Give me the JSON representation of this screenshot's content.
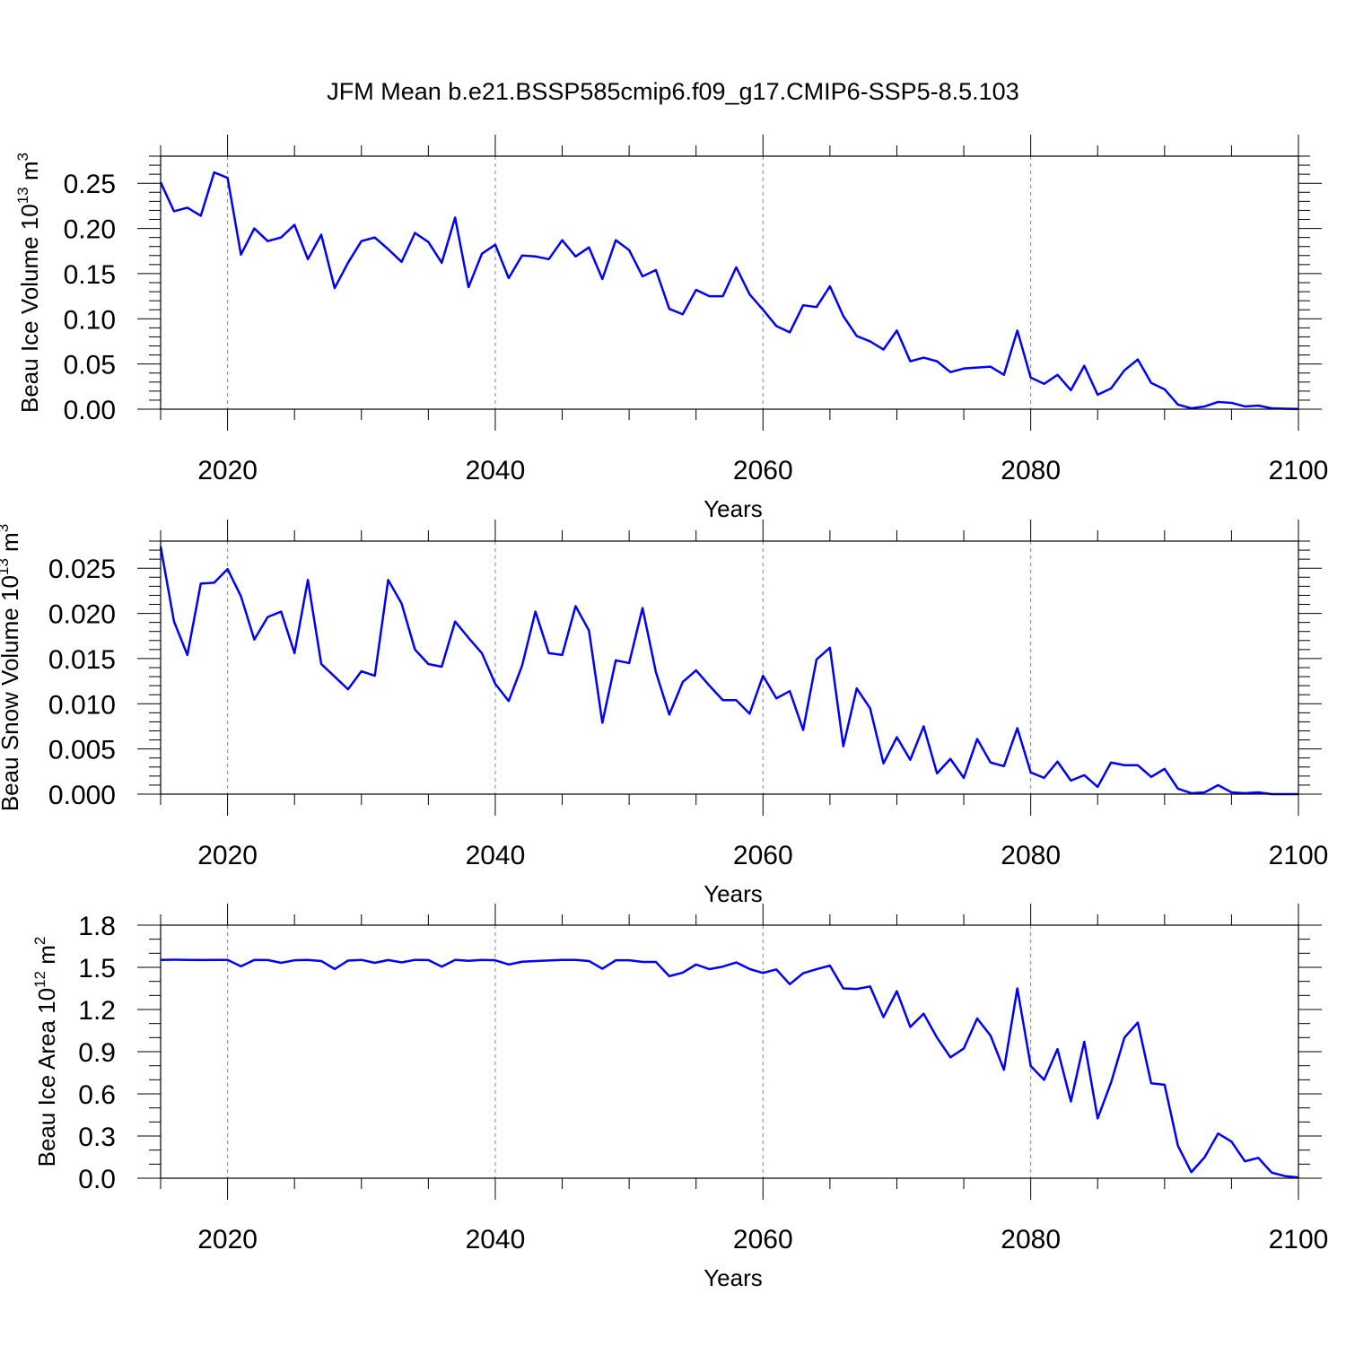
{
  "title": "JFM Mean b.e21.BSSP585cmip6.f09_g17.CMIP6-SSP5-8.5.103",
  "colors": {
    "series": "#0000ff",
    "axis": "#000000",
    "grid": "#888888"
  },
  "chart_data": [
    {
      "type": "line",
      "ylabel": "Beau Ice Volume 10",
      "ylabel_sup": "13",
      "ylabel_unit": " m",
      "ylabel_unit_sup": "3",
      "xlabel": "Years",
      "xlim": [
        2015,
        2100
      ],
      "ylim": [
        0,
        0.28
      ],
      "yticks": [
        0,
        0.05,
        0.1,
        0.15,
        0.2,
        0.25
      ],
      "ytick_labels": [
        "0.00",
        "0.05",
        "0.10",
        "0.15",
        "0.20",
        "0.25"
      ],
      "xticks": [
        2020,
        2040,
        2060,
        2080,
        2100
      ],
      "xtick_labels": [
        "2020",
        "2040",
        "2060",
        "2080",
        "2100"
      ],
      "grid": "vertical dashed at major x ticks",
      "start_year": 2015,
      "values": [
        0.251,
        0.219,
        0.223,
        0.214,
        0.262,
        0.256,
        0.171,
        0.2,
        0.186,
        0.19,
        0.204,
        0.166,
        0.193,
        0.134,
        0.162,
        0.186,
        0.19,
        0.177,
        0.163,
        0.195,
        0.185,
        0.162,
        0.212,
        0.135,
        0.172,
        0.182,
        0.145,
        0.17,
        0.169,
        0.166,
        0.187,
        0.169,
        0.179,
        0.144,
        0.187,
        0.176,
        0.147,
        0.154,
        0.111,
        0.105,
        0.132,
        0.125,
        0.125,
        0.157,
        0.127,
        0.11,
        0.092,
        0.085,
        0.115,
        0.113,
        0.136,
        0.103,
        0.081,
        0.075,
        0.066,
        0.087,
        0.053,
        0.057,
        0.053,
        0.041,
        0.045,
        0.046,
        0.047,
        0.038,
        0.087,
        0.035,
        0.028,
        0.038,
        0.021,
        0.048,
        0.016,
        0.023,
        0.043,
        0.055,
        0.029,
        0.022,
        0.005,
        0.001,
        0.003,
        0.008,
        0.007,
        0.003,
        0.004,
        0.001,
        0.0005,
        0.0002
      ]
    },
    {
      "type": "line",
      "ylabel": "Beau Snow Volume 10",
      "ylabel_sup": "13",
      "ylabel_unit": " m",
      "ylabel_unit_sup": "3",
      "xlabel": "Years",
      "xlim": [
        2015,
        2100
      ],
      "ylim": [
        0,
        0.028
      ],
      "yticks": [
        0,
        0.005,
        0.01,
        0.015,
        0.02,
        0.025
      ],
      "ytick_labels": [
        "0.000",
        "0.005",
        "0.010",
        "0.015",
        "0.020",
        "0.025"
      ],
      "xticks": [
        2020,
        2040,
        2060,
        2080,
        2100
      ],
      "xtick_labels": [
        "2020",
        "2040",
        "2060",
        "2080",
        "2100"
      ],
      "grid": "vertical dashed at major x ticks",
      "start_year": 2015,
      "values": [
        0.0274,
        0.0191,
        0.0154,
        0.0233,
        0.0234,
        0.0249,
        0.0219,
        0.0171,
        0.0196,
        0.0202,
        0.0156,
        0.0237,
        0.0144,
        0.013,
        0.0116,
        0.0136,
        0.0131,
        0.0237,
        0.0211,
        0.016,
        0.0144,
        0.0141,
        0.0191,
        0.0173,
        0.0156,
        0.0122,
        0.0103,
        0.0142,
        0.0202,
        0.0156,
        0.0154,
        0.0208,
        0.0181,
        0.0079,
        0.0148,
        0.0145,
        0.0206,
        0.0135,
        0.0088,
        0.0124,
        0.0137,
        0.012,
        0.0104,
        0.0104,
        0.0089,
        0.0131,
        0.0106,
        0.0114,
        0.0071,
        0.0149,
        0.0162,
        0.0053,
        0.0117,
        0.0095,
        0.0034,
        0.0063,
        0.0038,
        0.0075,
        0.0023,
        0.0039,
        0.0018,
        0.0061,
        0.0035,
        0.0031,
        0.0073,
        0.0024,
        0.0018,
        0.0036,
        0.0015,
        0.0021,
        0.0008,
        0.0035,
        0.0032,
        0.0032,
        0.0019,
        0.0028,
        0.0006,
        0.0001,
        0.0002,
        0.001,
        0.0002,
        0.0001,
        0.0002,
        0.0,
        0.0,
        0.0
      ]
    },
    {
      "type": "line",
      "ylabel": "Beau Ice Area 10",
      "ylabel_sup": "12",
      "ylabel_unit": " m",
      "ylabel_unit_sup": "2",
      "xlabel": "Years",
      "xlim": [
        2015,
        2100
      ],
      "ylim": [
        0,
        1.8
      ],
      "yticks": [
        0,
        0.3,
        0.6,
        0.9,
        1.2,
        1.5,
        1.8
      ],
      "ytick_labels": [
        "0.0",
        "0.3",
        "0.6",
        "0.9",
        "1.2",
        "1.5",
        "1.8"
      ],
      "xticks": [
        2020,
        2040,
        2060,
        2080,
        2100
      ],
      "xtick_labels": [
        "2020",
        "2040",
        "2060",
        "2080",
        "2100"
      ],
      "grid": "vertical dashed at major x ticks",
      "start_year": 2015,
      "values": [
        1.553,
        1.554,
        1.553,
        1.552,
        1.553,
        1.553,
        1.507,
        1.553,
        1.552,
        1.532,
        1.55,
        1.553,
        1.545,
        1.488,
        1.548,
        1.553,
        1.532,
        1.552,
        1.535,
        1.553,
        1.552,
        1.505,
        1.553,
        1.546,
        1.553,
        1.55,
        1.52,
        1.54,
        1.545,
        1.549,
        1.553,
        1.553,
        1.545,
        1.49,
        1.55,
        1.55,
        1.538,
        1.538,
        1.437,
        1.462,
        1.52,
        1.487,
        1.505,
        1.535,
        1.488,
        1.46,
        1.485,
        1.38,
        1.458,
        1.487,
        1.512,
        1.35,
        1.346,
        1.364,
        1.146,
        1.33,
        1.076,
        1.17,
        1.0,
        0.86,
        0.923,
        1.136,
        1.014,
        0.771,
        1.35,
        0.798,
        0.7,
        0.918,
        0.546,
        0.971,
        0.425,
        0.68,
        1.0,
        1.107,
        0.675,
        0.665,
        0.23,
        0.043,
        0.15,
        0.318,
        0.26,
        0.12,
        0.145,
        0.04,
        0.015,
        0.005
      ]
    }
  ]
}
